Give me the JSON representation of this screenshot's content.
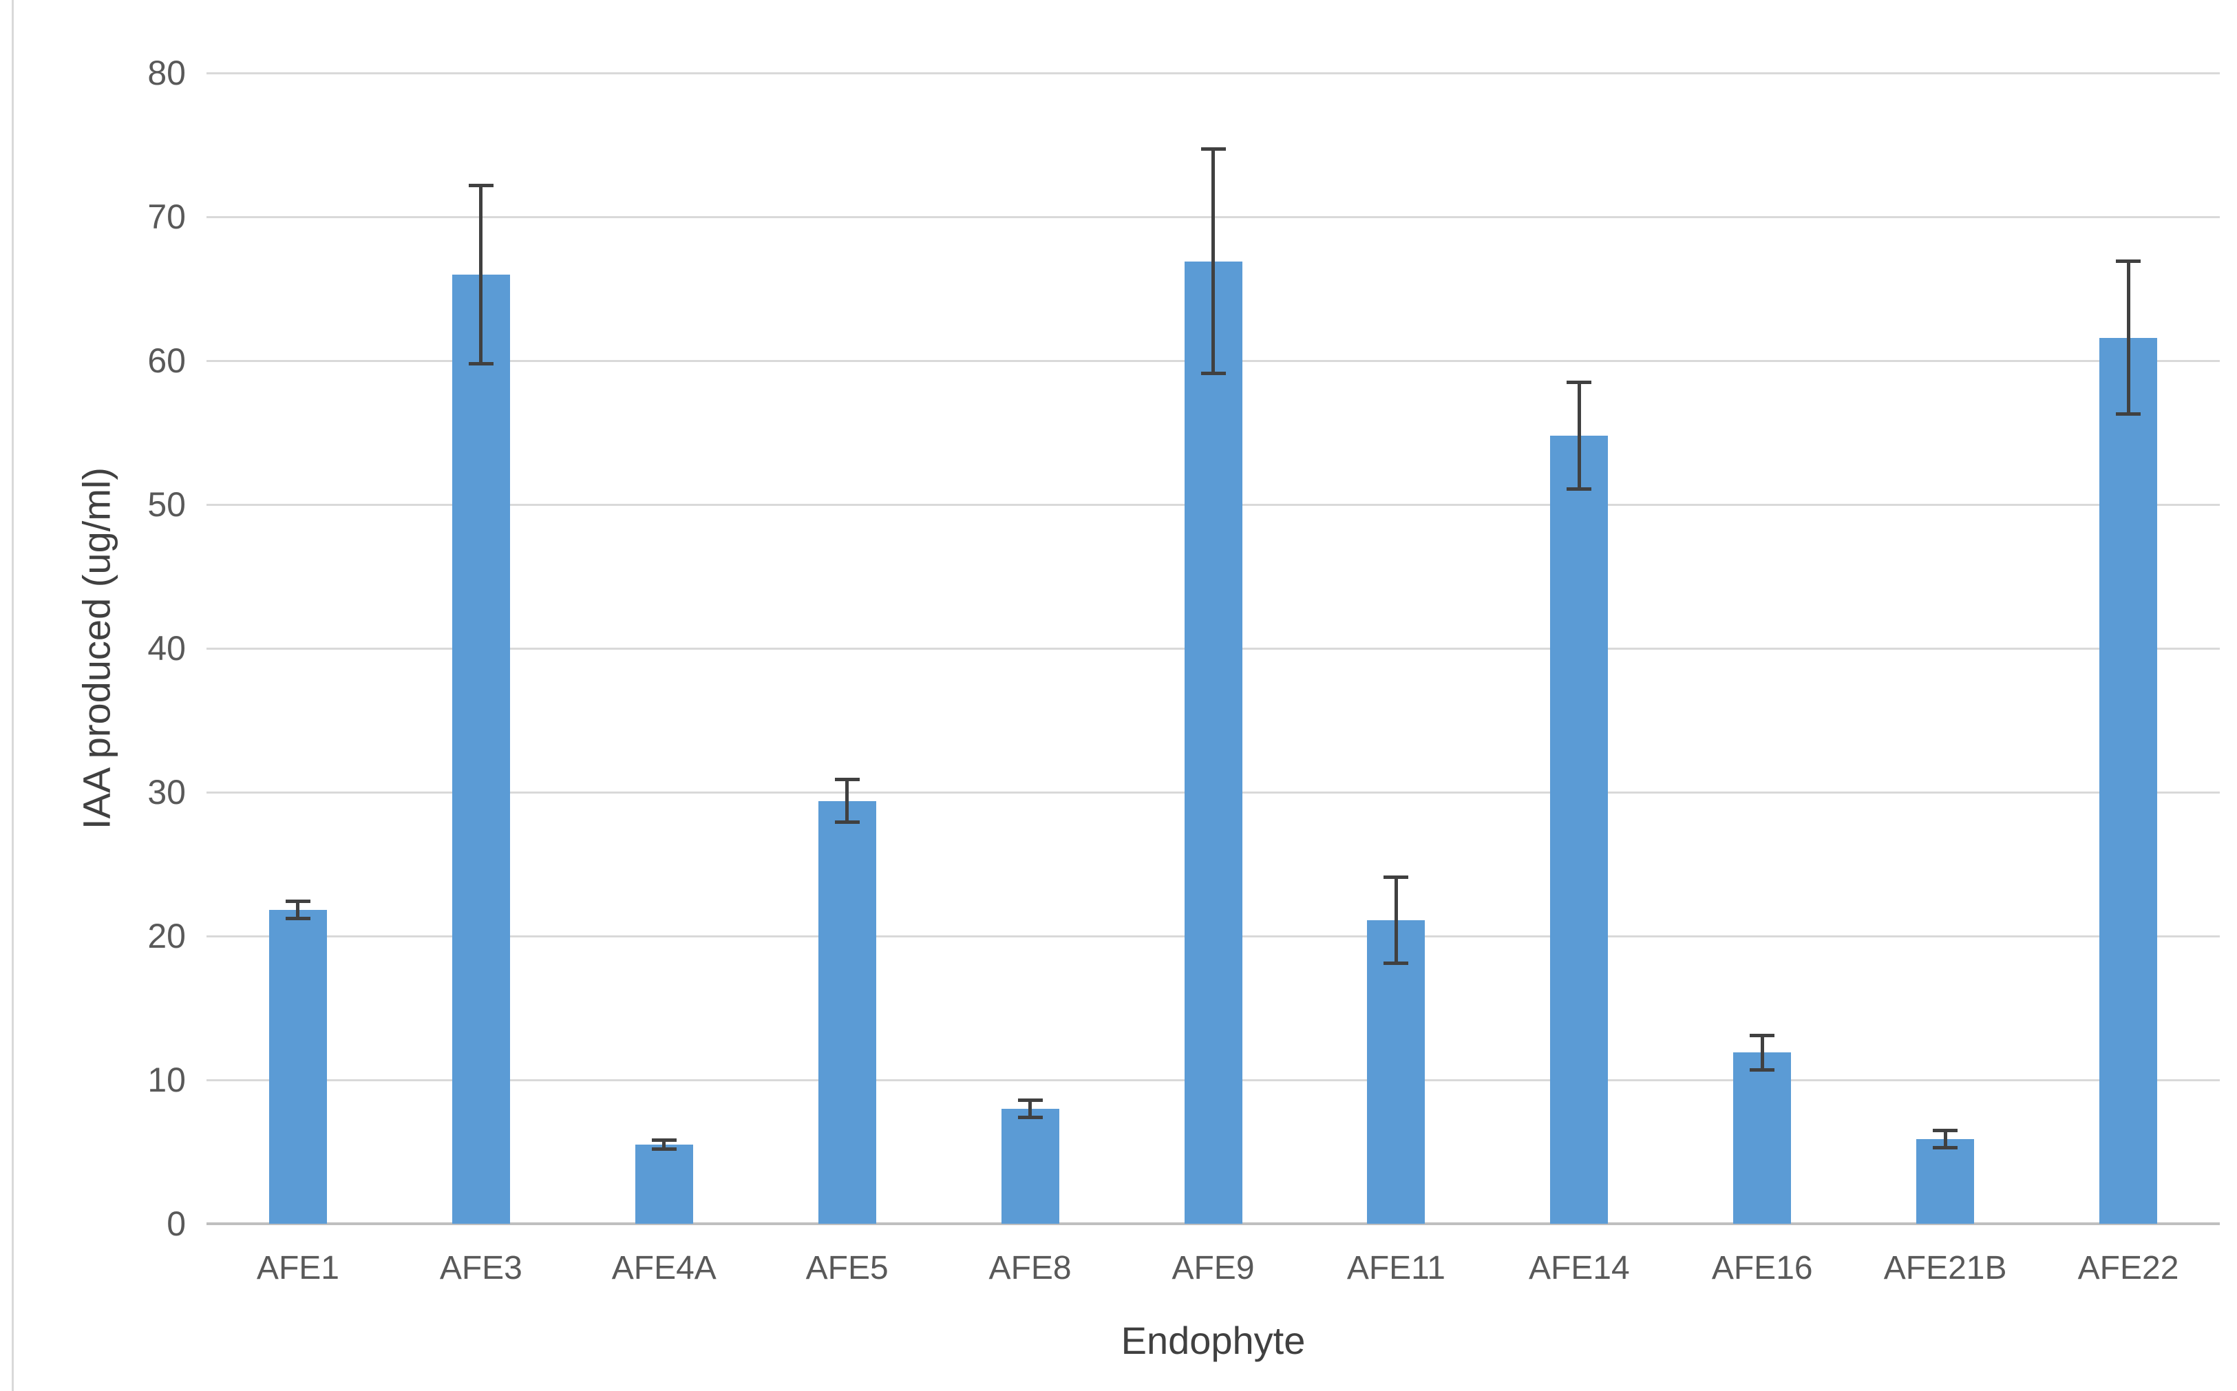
{
  "chart_data": {
    "type": "bar",
    "title": "",
    "xlabel": "Endophyte",
    "ylabel": "IAA produced (ug/ml)",
    "categories": [
      "AFE1",
      "AFE3",
      "AFE4A",
      "AFE5",
      "AFE8",
      "AFE9",
      "AFE11",
      "AFE14",
      "AFE16",
      "AFE21B",
      "AFE22"
    ],
    "values": [
      21.8,
      66.0,
      5.5,
      29.4,
      8.0,
      66.9,
      21.1,
      54.8,
      11.9,
      5.9,
      61.6
    ],
    "error_bars": [
      0.6,
      6.2,
      0.3,
      1.5,
      0.6,
      7.8,
      3.0,
      3.7,
      1.2,
      0.6,
      5.3
    ],
    "ylim": [
      0,
      80
    ],
    "yticks": [
      0,
      10,
      20,
      30,
      40,
      50,
      60,
      70,
      80
    ],
    "grid": true,
    "legend": "none",
    "colors": {
      "bar": "#5B9BD5",
      "error_bar": "#404040",
      "gridline": "#D9D9D9",
      "axis_line": "#BFBFBF",
      "tick_label": "#595959",
      "axis_title": "#404040",
      "background": "#FFFFFF"
    }
  }
}
